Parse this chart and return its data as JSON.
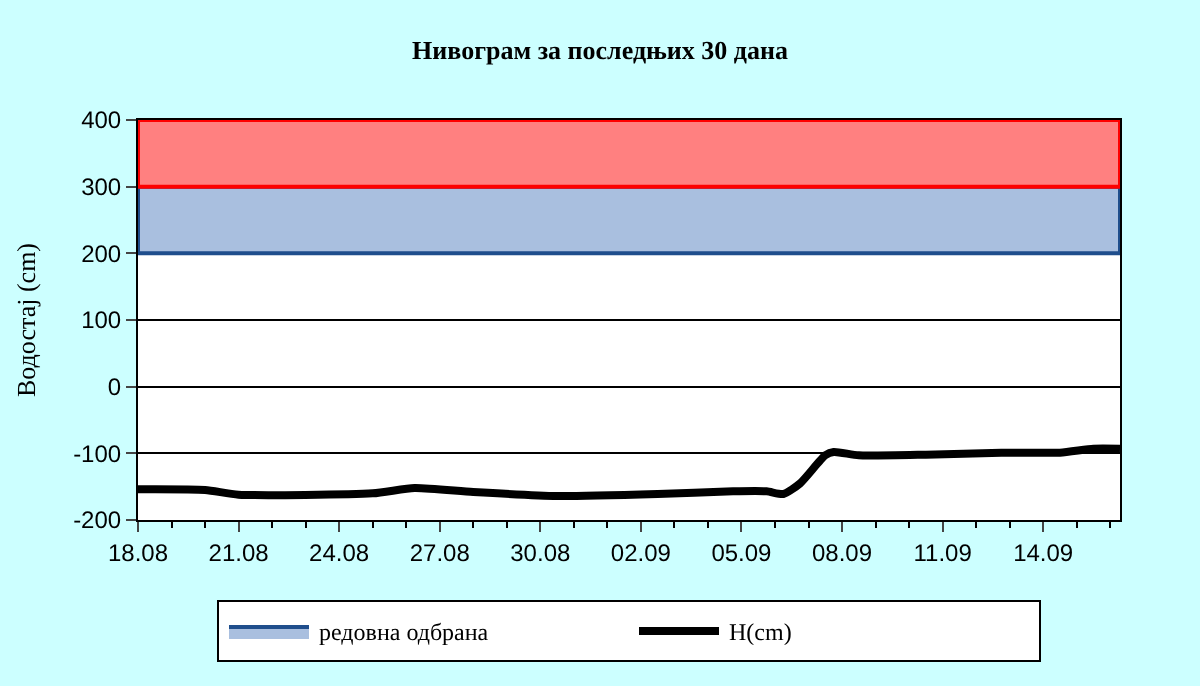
{
  "chart_data": {
    "type": "line",
    "title": "Нивограм за последњих 30 дана",
    "ylabel": "Водостај (cm)",
    "series": [
      {
        "name": "H(cm)",
        "color": "#000000",
        "x": [
          "--08-18",
          "--08-20",
          "--08-21",
          "--08-25",
          "--08-26T06:00",
          "--08-28",
          "--08-30T12:00",
          "--09-02T12:00",
          "--09-04T18:00",
          "--09-05T18:00",
          "--09-06T06:00",
          "--09-06T18:00",
          "--09-07T12:00",
          "--09-07T18:00",
          "--09-08T12:00",
          "--09-10T12:00",
          "--09-12T18:00",
          "--09-14T12:00",
          "--09-15T12:00",
          "--09-16T07:00"
        ],
        "values": [
          -154,
          -155,
          -162,
          -160,
          -152,
          -158,
          -164,
          -161,
          -157,
          -157,
          -161,
          -145,
          -103,
          -98,
          -103,
          -102,
          -99,
          -99,
          -93,
          -93
        ]
      }
    ],
    "bands": [
      {
        "axis": "y",
        "from": 200,
        "to": 300,
        "label": "редовна одбрана",
        "color": "#a9bfdf"
      },
      {
        "axis": "y",
        "from": 300,
        "to": 400,
        "label": null,
        "color": "#ff8080"
      }
    ],
    "xlim": [
      "--08-18",
      "--09-16T07:00"
    ],
    "xticks": [
      {
        "value": "--08-18",
        "label": "18.08"
      },
      {
        "value": "--08-21",
        "label": "21.08"
      },
      {
        "value": "--08-24",
        "label": "24.08"
      },
      {
        "value": "--08-27",
        "label": "27.08"
      },
      {
        "value": "--08-30",
        "label": "30.08"
      },
      {
        "value": "--09-02",
        "label": "02.09"
      },
      {
        "value": "--09-05",
        "label": "05.09"
      },
      {
        "value": "--09-08",
        "label": "08.09"
      },
      {
        "value": "--09-11",
        "label": "11.09"
      },
      {
        "value": "--09-14",
        "label": "14.09"
      }
    ],
    "ylim": [
      -200,
      400
    ],
    "yticks": [
      -200,
      -100,
      0,
      100,
      200,
      300,
      400
    ],
    "grid": "y",
    "legend": "bottom",
    "marker": "none",
    "line_style": "solid"
  }
}
